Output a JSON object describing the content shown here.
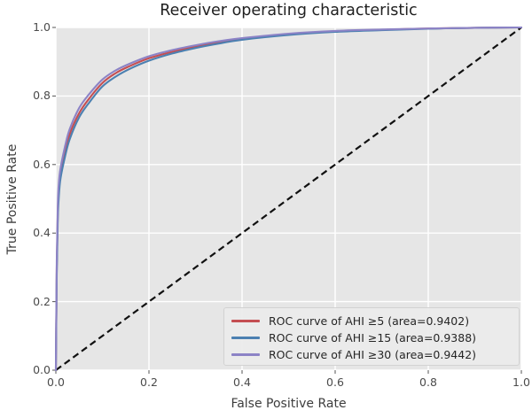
{
  "chart_data": {
    "type": "line",
    "title": "Receiver operating characteristic",
    "xlabel": "False Positive Rate",
    "ylabel": "True Positive Rate",
    "xlim": [
      0.0,
      1.0
    ],
    "ylim": [
      0.0,
      1.0
    ],
    "xticks": [
      0.0,
      0.2,
      0.4,
      0.6,
      0.8,
      1.0
    ],
    "yticks": [
      0.0,
      0.2,
      0.4,
      0.6,
      0.8,
      1.0
    ],
    "xtick_labels": [
      "0.0",
      "0.2",
      "0.4",
      "0.6",
      "0.8",
      "1.0"
    ],
    "ytick_labels": [
      "0.0",
      "0.2",
      "0.4",
      "0.6",
      "0.8",
      "1.0"
    ],
    "grid": true,
    "legend_position": "lower right",
    "colors": {
      "axes_background": "#e6e6e6",
      "grid": "#ffffff",
      "tick": "#555555",
      "reference_line": "#111111"
    },
    "reference_line": {
      "style": "dashed",
      "from": [
        0.0,
        0.0
      ],
      "to": [
        1.0,
        1.0
      ]
    },
    "series": [
      {
        "name": "ROC curve of AHI ≥5 (area=0.9402)",
        "auc": 0.9402,
        "color": "#c44e52",
        "points": [
          [
            0,
            0
          ],
          [
            0.002,
            0.3
          ],
          [
            0.004,
            0.45
          ],
          [
            0.006,
            0.52
          ],
          [
            0.01,
            0.575
          ],
          [
            0.02,
            0.64
          ],
          [
            0.03,
            0.69
          ],
          [
            0.05,
            0.75
          ],
          [
            0.07,
            0.79
          ],
          [
            0.1,
            0.838
          ],
          [
            0.13,
            0.868
          ],
          [
            0.16,
            0.888
          ],
          [
            0.2,
            0.91
          ],
          [
            0.25,
            0.929
          ],
          [
            0.3,
            0.944
          ],
          [
            0.35,
            0.956
          ],
          [
            0.4,
            0.966
          ],
          [
            0.5,
            0.98
          ],
          [
            0.6,
            0.988
          ],
          [
            0.7,
            0.993
          ],
          [
            0.8,
            0.997
          ],
          [
            0.9,
            0.999
          ],
          [
            1,
            1
          ]
        ]
      },
      {
        "name": "ROC curve of AHI ≥15 (area=0.9388)",
        "auc": 0.9388,
        "color": "#4c80b1",
        "points": [
          [
            0,
            0
          ],
          [
            0.002,
            0.28
          ],
          [
            0.004,
            0.43
          ],
          [
            0.006,
            0.5
          ],
          [
            0.01,
            0.56
          ],
          [
            0.02,
            0.625
          ],
          [
            0.03,
            0.675
          ],
          [
            0.05,
            0.738
          ],
          [
            0.07,
            0.778
          ],
          [
            0.1,
            0.828
          ],
          [
            0.13,
            0.858
          ],
          [
            0.16,
            0.88
          ],
          [
            0.2,
            0.903
          ],
          [
            0.25,
            0.924
          ],
          [
            0.3,
            0.94
          ],
          [
            0.35,
            0.953
          ],
          [
            0.4,
            0.964
          ],
          [
            0.5,
            0.978
          ],
          [
            0.6,
            0.987
          ],
          [
            0.7,
            0.992
          ],
          [
            0.8,
            0.996
          ],
          [
            0.9,
            0.999
          ],
          [
            1,
            1
          ]
        ]
      },
      {
        "name": "ROC curve of AHI ≥30 (area=0.9442)",
        "auc": 0.9442,
        "color": "#8c83c6",
        "points": [
          [
            0,
            0
          ],
          [
            0.002,
            0.32
          ],
          [
            0.004,
            0.47
          ],
          [
            0.006,
            0.54
          ],
          [
            0.01,
            0.59
          ],
          [
            0.02,
            0.655
          ],
          [
            0.03,
            0.705
          ],
          [
            0.05,
            0.765
          ],
          [
            0.07,
            0.803
          ],
          [
            0.1,
            0.848
          ],
          [
            0.13,
            0.876
          ],
          [
            0.16,
            0.895
          ],
          [
            0.2,
            0.916
          ],
          [
            0.25,
            0.934
          ],
          [
            0.3,
            0.948
          ],
          [
            0.35,
            0.96
          ],
          [
            0.4,
            0.969
          ],
          [
            0.5,
            0.982
          ],
          [
            0.6,
            0.99
          ],
          [
            0.7,
            0.994
          ],
          [
            0.8,
            0.997
          ],
          [
            0.9,
            0.999
          ],
          [
            1,
            1
          ]
        ]
      }
    ]
  }
}
